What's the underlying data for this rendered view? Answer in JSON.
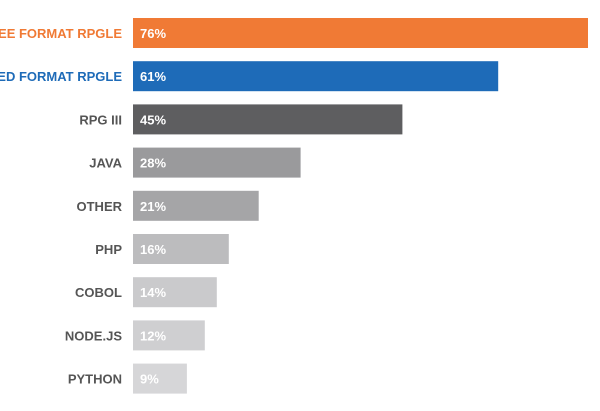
{
  "chart_data": {
    "type": "bar",
    "orientation": "horizontal",
    "categories": [
      "FREE FORMAT RPGLE",
      "FIXED FORMAT RPGLE",
      "RPG III",
      "JAVA",
      "OTHER",
      "PHP",
      "COBOL",
      "NODE.JS",
      "PYTHON"
    ],
    "values": [
      76,
      61,
      45,
      28,
      21,
      16,
      14,
      12,
      9
    ],
    "value_labels": [
      "76%",
      "61%",
      "45%",
      "28%",
      "21%",
      "16%",
      "14%",
      "12%",
      "9%"
    ],
    "bar_colors": [
      "#F07A35",
      "#1E6BB8",
      "#5E5E60",
      "#9A9A9C",
      "#A5A5A7",
      "#BCBCBE",
      "#CACACC",
      "#CFCFD1",
      "#D6D6D8"
    ],
    "label_colors": [
      "#F07A35",
      "#1E6BB8",
      "#555555",
      "#555555",
      "#555555",
      "#555555",
      "#555555",
      "#555555",
      "#555555"
    ],
    "value_label_colors": [
      "#FFFFFF",
      "#FFFFFF",
      "#FFFFFF",
      "#FFFFFF",
      "#FFFFFF",
      "#FFFFFF",
      "#FFFFFF",
      "#FFFFFF",
      "#FFFFFF"
    ],
    "xlim": [
      0,
      76
    ],
    "title": "",
    "xlabel": "",
    "ylabel": "",
    "grid": false,
    "legend": "none"
  }
}
